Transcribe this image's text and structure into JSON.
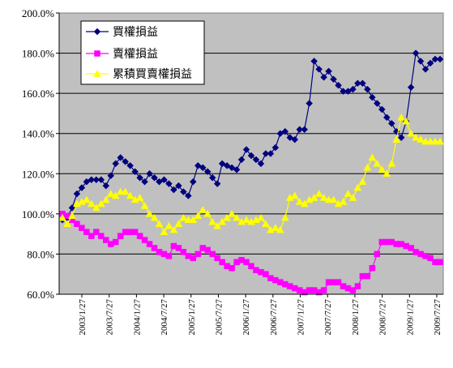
{
  "chart_data": {
    "type": "line",
    "title": "",
    "xlabel": "",
    "ylabel": "",
    "ylim": [
      60,
      200
    ],
    "y_ticks": [
      60,
      80,
      100,
      120,
      140,
      160,
      180,
      200
    ],
    "y_tick_labels": [
      "60.0%",
      "80.0%",
      "100.0%",
      "120.0%",
      "140.0%",
      "160.0%",
      "180.0%",
      "200.0%"
    ],
    "x_tick_labels": [
      "2003/1/27",
      "2003/7/27",
      "2004/1/27",
      "2004/7/27",
      "2005/1/27",
      "2005/7/27",
      "2006/1/27",
      "2006/7/27",
      "2007/1/27",
      "2007/7/27",
      "2008/1/27",
      "2008/7/27",
      "2009/1/27",
      "2009/7/27"
    ],
    "grid": "horizontal",
    "plot_background": "#c0c0c0",
    "legend_position": "top-left",
    "series": [
      {
        "name": "買權損益",
        "color": "#000080",
        "marker": "diamond",
        "values": [
          97,
          98,
          103,
          110,
          113,
          116,
          117,
          117,
          117,
          114,
          119,
          125,
          128,
          126,
          124,
          121,
          118,
          116,
          120,
          118,
          116,
          117,
          115,
          112,
          114,
          111,
          109,
          116,
          124,
          123,
          121,
          118,
          115,
          125,
          124,
          123,
          122,
          127,
          132,
          129,
          127,
          125,
          130,
          130,
          133,
          140,
          141,
          138,
          137,
          142,
          142,
          155,
          176,
          172,
          168,
          171,
          167,
          164,
          161,
          161,
          162,
          165,
          165,
          162,
          158,
          155,
          152,
          148,
          145,
          141,
          138,
          146,
          163,
          180,
          176,
          172,
          175,
          177,
          177
        ]
      },
      {
        "name": "賣權損益",
        "color": "#ff00ff",
        "marker": "square",
        "values": [
          100,
          99,
          97,
          95,
          93,
          91,
          89,
          91,
          89,
          87,
          85,
          86,
          89,
          91,
          91,
          91,
          89,
          87,
          85,
          83,
          81,
          80,
          79,
          84,
          83,
          81,
          79,
          78,
          80,
          83,
          82,
          80,
          78,
          76,
          74,
          73,
          76,
          77,
          76,
          74,
          72,
          71,
          70,
          68,
          67,
          66,
          65,
          64,
          63,
          62,
          61,
          62,
          62,
          61,
          62,
          66,
          66,
          66,
          64,
          63,
          62,
          64,
          69,
          69,
          73,
          80,
          86,
          86,
          86,
          85,
          85,
          84,
          83,
          81,
          80,
          79,
          78,
          76,
          76
        ]
      },
      {
        "name": "累積買賣權損益",
        "color": "#ffff00",
        "marker": "triangle",
        "values": [
          98,
          95,
          99,
          105,
          106,
          107,
          105,
          103,
          105,
          107,
          110,
          109,
          111,
          111,
          109,
          107,
          108,
          104,
          100,
          98,
          95,
          91,
          94,
          92,
          95,
          98,
          97,
          97,
          99,
          102,
          100,
          96,
          94,
          96,
          98,
          100,
          98,
          96,
          97,
          96,
          97,
          98,
          95,
          92,
          93,
          92,
          98,
          108,
          109,
          106,
          105,
          107,
          108,
          110,
          108,
          107,
          107,
          105,
          106,
          110,
          108,
          113,
          116,
          123,
          128,
          125,
          122,
          120,
          125,
          137,
          148,
          146,
          140,
          138,
          137,
          136,
          136,
          136,
          136
        ]
      }
    ]
  }
}
